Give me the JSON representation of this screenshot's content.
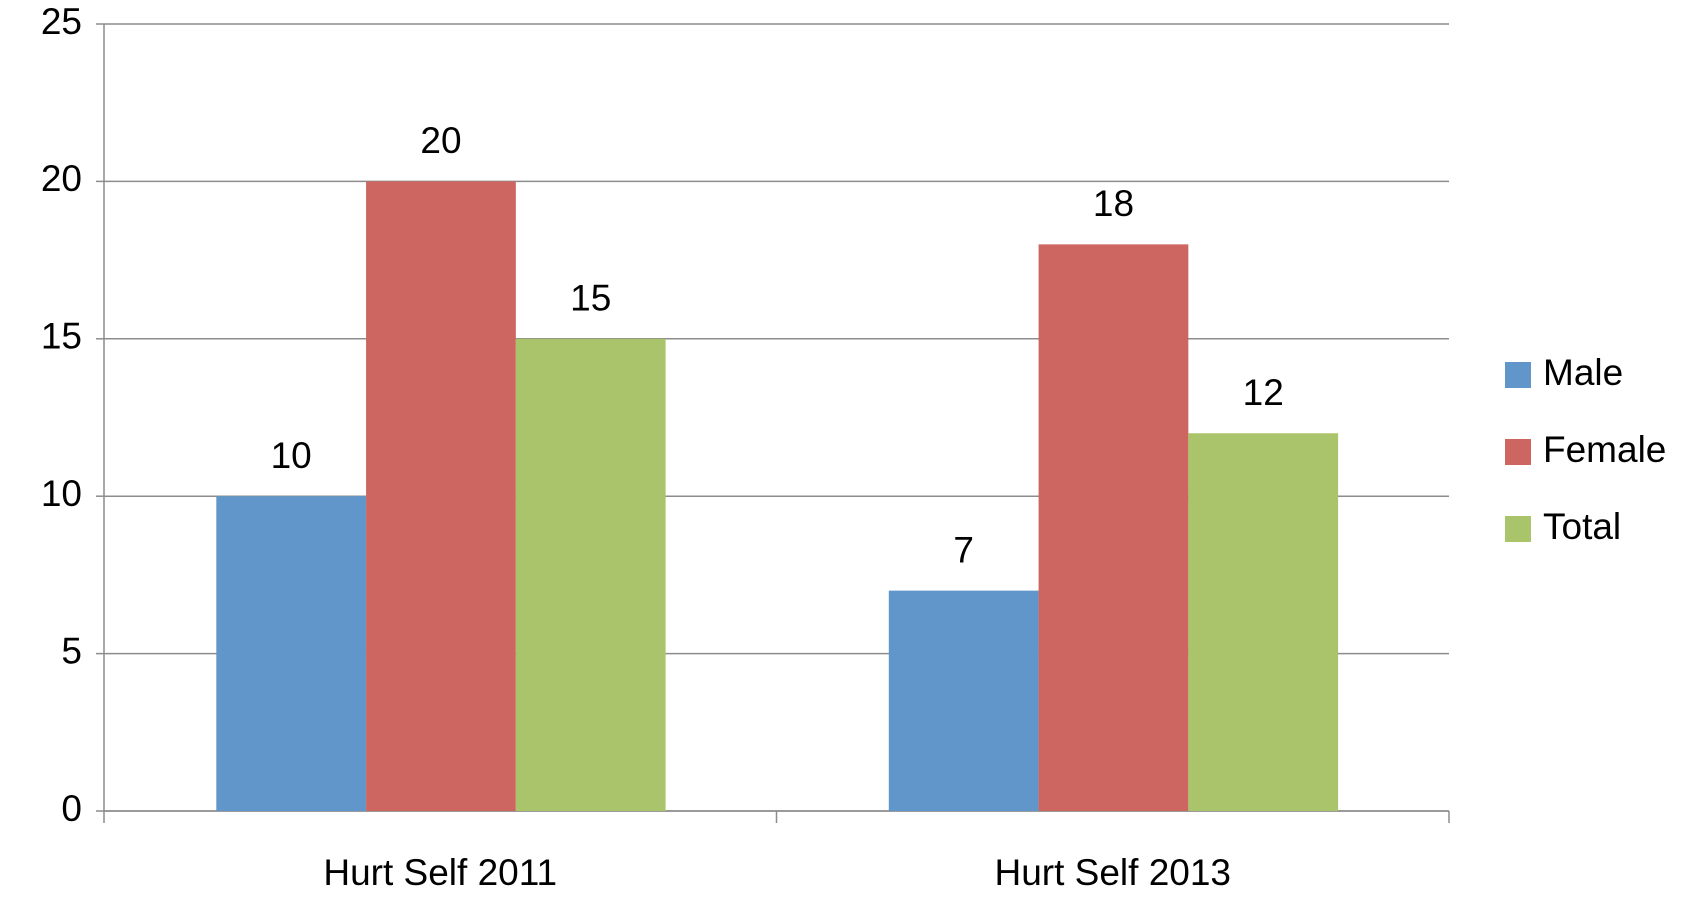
{
  "chart_data": {
    "type": "bar",
    "categories": [
      "Hurt Self 2011",
      "Hurt Self 2013"
    ],
    "series": [
      {
        "name": "Male",
        "color": "#6096c9",
        "values": [
          10,
          7
        ]
      },
      {
        "name": "Female",
        "color": "#cd6660",
        "values": [
          20,
          18
        ]
      },
      {
        "name": "Total",
        "color": "#a9c46a",
        "values": [
          15,
          12
        ]
      }
    ],
    "ylim": [
      0,
      25
    ],
    "yticks": [
      0,
      5,
      10,
      15,
      20,
      25
    ],
    "grid": true,
    "legend": "right"
  }
}
